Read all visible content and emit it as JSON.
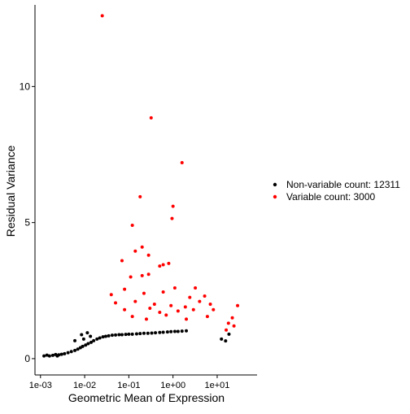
{
  "chart_data": {
    "type": "scatter",
    "xlabel": "Geometric Mean of Expression",
    "ylabel": "Residual Variance",
    "x_scale": "log10",
    "xlim": [
      0.00075,
      80
    ],
    "ylim": [
      -0.6,
      13.0
    ],
    "x_ticks": [
      {
        "value": 0.001,
        "label": "1e-03"
      },
      {
        "value": 0.01,
        "label": "1e-02"
      },
      {
        "value": 0.1,
        "label": "1e-01"
      },
      {
        "value": 1,
        "label": "1e+00"
      },
      {
        "value": 10,
        "label": "1e+01"
      }
    ],
    "y_ticks": [
      {
        "value": 0,
        "label": "0"
      },
      {
        "value": 5,
        "label": "5"
      },
      {
        "value": 10,
        "label": "10"
      }
    ],
    "grid": false,
    "legend_position": "right",
    "series": [
      {
        "name": "Non-variable count: 12311",
        "color": "#000000",
        "points": [
          [
            0.0012,
            0.1
          ],
          [
            0.0014,
            0.13
          ],
          [
            0.0016,
            0.1
          ],
          [
            0.0019,
            0.12
          ],
          [
            0.0022,
            0.15
          ],
          [
            0.0026,
            0.14
          ],
          [
            0.003,
            0.16
          ],
          [
            0.0035,
            0.18
          ],
          [
            0.0042,
            0.22
          ],
          [
            0.005,
            0.26
          ],
          [
            0.006,
            0.3
          ],
          [
            0.007,
            0.35
          ],
          [
            0.008,
            0.4
          ],
          [
            0.009,
            0.45
          ],
          [
            0.0105,
            0.5
          ],
          [
            0.012,
            0.55
          ],
          [
            0.014,
            0.6
          ],
          [
            0.016,
            0.66
          ],
          [
            0.019,
            0.72
          ],
          [
            0.022,
            0.76
          ],
          [
            0.026,
            0.8
          ],
          [
            0.03,
            0.82
          ],
          [
            0.035,
            0.84
          ],
          [
            0.042,
            0.86
          ],
          [
            0.05,
            0.87
          ],
          [
            0.06,
            0.88
          ],
          [
            0.07,
            0.88
          ],
          [
            0.085,
            0.89
          ],
          [
            0.1,
            0.9
          ],
          [
            0.12,
            0.9
          ],
          [
            0.15,
            0.91
          ],
          [
            0.18,
            0.92
          ],
          [
            0.22,
            0.93
          ],
          [
            0.27,
            0.93
          ],
          [
            0.33,
            0.94
          ],
          [
            0.4,
            0.95
          ],
          [
            0.5,
            0.96
          ],
          [
            0.6,
            0.97
          ],
          [
            0.75,
            0.98
          ],
          [
            0.9,
            0.99
          ],
          [
            1.1,
            1.0
          ],
          [
            1.3,
            1.0
          ],
          [
            1.6,
            1.01
          ],
          [
            2.0,
            1.02
          ],
          [
            0.0085,
            0.88
          ],
          [
            0.0115,
            0.95
          ],
          [
            0.006,
            0.66
          ],
          [
            0.0095,
            0.72
          ],
          [
            0.0135,
            0.82
          ],
          [
            0.0024,
            0.1
          ],
          [
            12.5,
            0.72
          ],
          [
            15.5,
            0.65
          ],
          [
            18.5,
            0.9
          ]
        ]
      },
      {
        "name": "Variable count: 3000",
        "color": "#ff0000",
        "points": [
          [
            0.025,
            12.6
          ],
          [
            0.32,
            8.85
          ],
          [
            1.6,
            7.2
          ],
          [
            0.18,
            5.95
          ],
          [
            1.0,
            5.6
          ],
          [
            0.95,
            5.15
          ],
          [
            0.12,
            4.9
          ],
          [
            0.2,
            4.1
          ],
          [
            0.14,
            3.95
          ],
          [
            0.28,
            3.8
          ],
          [
            0.5,
            3.4
          ],
          [
            0.07,
            3.6
          ],
          [
            0.6,
            3.45
          ],
          [
            0.11,
            3.0
          ],
          [
            0.2,
            3.05
          ],
          [
            0.28,
            3.1
          ],
          [
            0.8,
            3.5
          ],
          [
            3.2,
            2.6
          ],
          [
            0.08,
            2.55
          ],
          [
            0.04,
            2.35
          ],
          [
            0.22,
            2.4
          ],
          [
            0.6,
            2.45
          ],
          [
            1.1,
            2.6
          ],
          [
            2.4,
            2.25
          ],
          [
            5.2,
            2.3
          ],
          [
            0.05,
            2.05
          ],
          [
            0.14,
            2.1
          ],
          [
            0.38,
            2.0
          ],
          [
            0.9,
            1.95
          ],
          [
            1.9,
            1.9
          ],
          [
            4.0,
            2.1
          ],
          [
            7.0,
            2.0
          ],
          [
            29,
            1.95
          ],
          [
            22,
            1.5
          ],
          [
            18,
            1.3
          ],
          [
            24,
            1.2
          ],
          [
            16,
            1.05
          ],
          [
            0.08,
            1.8
          ],
          [
            0.3,
            1.85
          ],
          [
            1.3,
            1.75
          ],
          [
            2.9,
            1.8
          ],
          [
            0.5,
            1.7
          ],
          [
            0.12,
            1.55
          ],
          [
            0.7,
            1.6
          ],
          [
            2.0,
            1.45
          ],
          [
            0.25,
            1.45
          ],
          [
            6.0,
            1.55
          ],
          [
            8.2,
            1.8
          ]
        ]
      }
    ]
  }
}
